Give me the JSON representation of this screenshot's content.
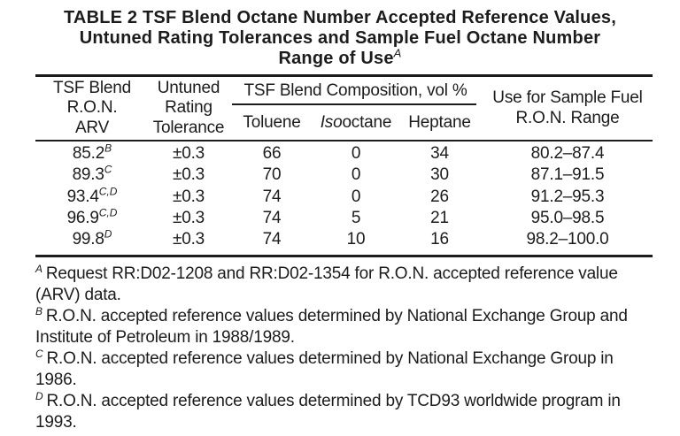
{
  "title": {
    "line1": "TABLE 2 TSF Blend Octane Number Accepted Reference Values,",
    "line2": "Untuned Rating Tolerances and Sample Fuel Octane Number",
    "line3": "Range of Use",
    "line3_superscript": "A"
  },
  "table": {
    "headers": {
      "col_arv": [
        "TSF Blend",
        "R.O.N.",
        "ARV"
      ],
      "col_tolerance": [
        "Untuned",
        "Rating",
        "Tolerance"
      ],
      "composition_group": "TSF Blend Composition, vol %",
      "col_toluene": "Toluene",
      "col_isooctane_italic_part": "Iso",
      "col_isooctane_regular_part": "octane",
      "col_heptane": "Heptane",
      "col_range": [
        "Use for Sample Fuel",
        "R.O.N. Range"
      ]
    },
    "rows": [
      {
        "arv": "85.2",
        "arv_sup": "B",
        "tolerance": "±0.3",
        "toluene": "66",
        "isooctane": "0",
        "heptane": "34",
        "range": "80.2–87.4"
      },
      {
        "arv": "89.3",
        "arv_sup": "C",
        "tolerance": "±0.3",
        "toluene": "70",
        "isooctane": "0",
        "heptane": "30",
        "range": "87.1–91.5"
      },
      {
        "arv": "93.4",
        "arv_sup": "C,D",
        "tolerance": "±0.3",
        "toluene": "74",
        "isooctane": "0",
        "heptane": "26",
        "range": "91.2–95.3"
      },
      {
        "arv": "96.9",
        "arv_sup": "C,D",
        "tolerance": "±0.3",
        "toluene": "74",
        "isooctane": "5",
        "heptane": "21",
        "range": "95.0–98.5"
      },
      {
        "arv": "99.8",
        "arv_sup": "D",
        "tolerance": "±0.3",
        "toluene": "74",
        "isooctane": "10",
        "heptane": "16",
        "range": "98.2–100.0"
      }
    ]
  },
  "footnotes": [
    {
      "sup": "A",
      "lines": [
        "Request RR:D02-1208 and RR:D02-1354 for R.O.N. accepted reference value",
        "(ARV) data."
      ]
    },
    {
      "sup": "B",
      "lines": [
        "R.O.N. accepted reference values determined by National Exchange Group and",
        "Institute of Petroleum in 1988/1989."
      ]
    },
    {
      "sup": "C",
      "lines": [
        "R.O.N. accepted reference values determined by National Exchange Group in",
        "1986."
      ]
    },
    {
      "sup": "D",
      "lines": [
        "R.O.N. accepted reference values determined by TCD93 worldwide program in",
        "1993."
      ]
    }
  ],
  "colors": {
    "background": "#ffffff",
    "text": "#1c1c1c",
    "rule": "#1c1c1c"
  }
}
